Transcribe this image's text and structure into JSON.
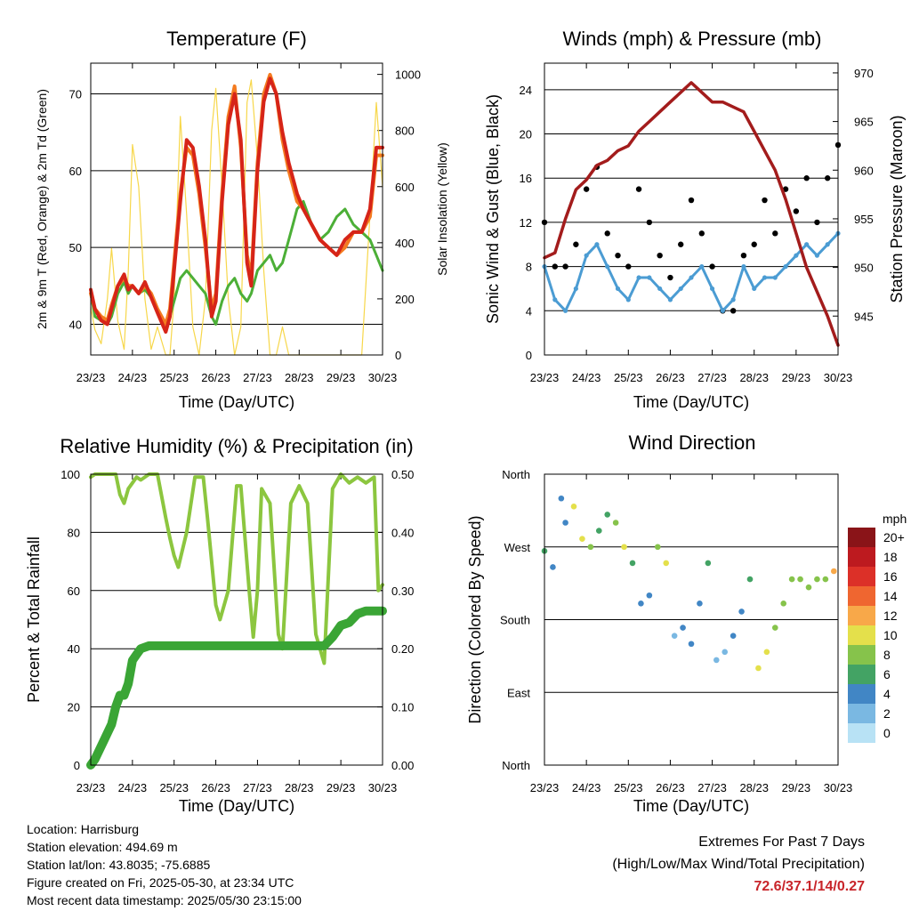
{
  "x_ticks": [
    "23/23",
    "24/23",
    "25/23",
    "26/23",
    "27/23",
    "28/23",
    "29/23",
    "30/23"
  ],
  "xlabel": "Time (Day/UTC)",
  "info": {
    "location": "Location: Harrisburg",
    "elevation": "Station elevation: 494.69 m",
    "latlon": "Station lat/lon: 43.8035; -75.6885",
    "created": "Figure created on Fri, 2025-05-30, at 23:34 UTC",
    "recent": "Most recent data timestamp: 2025/05/30 23:15:00"
  },
  "extremes": {
    "line1": "Extremes For Past 7 Days",
    "line2": "(High/Low/Max Wind/Total Precipitation)",
    "values": "72.6/37.1/14/0.27"
  },
  "chart_data": [
    {
      "type": "line",
      "title": "Temperature (F)",
      "xlabel": "Time (Day/UTC)",
      "ylabel": "2m & 9m T (Red, Orange) & 2m Td (Green)",
      "ylabel_right": "Solar Insolation (Yellow)",
      "ylim": [
        36,
        74
      ],
      "yticks": [
        40,
        50,
        60,
        70
      ],
      "ylim_right": [
        0,
        1040
      ],
      "yticks_right": [
        0,
        200,
        400,
        600,
        800,
        1000
      ],
      "x": [
        0,
        0.1,
        0.25,
        0.4,
        0.5,
        0.65,
        0.8,
        0.9,
        1.0,
        1.15,
        1.3,
        1.45,
        1.6,
        1.8,
        1.9,
        2.0,
        2.15,
        2.3,
        2.45,
        2.6,
        2.75,
        2.9,
        3.0,
        3.15,
        3.3,
        3.45,
        3.6,
        3.75,
        3.85,
        4.0,
        4.15,
        4.3,
        4.45,
        4.6,
        4.75,
        4.85,
        4.95,
        5.1,
        5.3,
        5.5,
        5.7,
        5.9,
        6.1,
        6.3,
        6.5,
        6.7,
        6.85,
        7.0
      ],
      "series": [
        {
          "color": "#d62418",
          "values": [
            44.5,
            42,
            40.5,
            40,
            42,
            45,
            46.5,
            44.5,
            45,
            44,
            45.5,
            43.5,
            41.5,
            39,
            41,
            47,
            56,
            64,
            63,
            58,
            51,
            41,
            43,
            56,
            66,
            70,
            64,
            48,
            45,
            60,
            69,
            72,
            70,
            65,
            61,
            59,
            57,
            55,
            53,
            51,
            50,
            49,
            51,
            52,
            52,
            55,
            63,
            63
          ]
        },
        {
          "color": "#f47b20",
          "values": [
            44,
            42,
            41,
            40.5,
            42.5,
            45,
            46,
            45,
            45,
            44,
            45,
            44,
            42,
            40,
            42,
            48,
            57,
            63,
            62,
            57,
            50,
            42,
            44,
            57,
            67,
            71,
            63,
            49,
            46,
            61,
            70,
            72.5,
            70,
            64,
            60,
            58,
            56,
            55,
            53,
            51,
            50,
            49,
            50,
            52,
            52,
            54,
            62,
            62
          ]
        },
        {
          "color": "#4caf37",
          "values": [
            44,
            41,
            40.5,
            40,
            41,
            44,
            45.5,
            44,
            45,
            44,
            44.5,
            43.5,
            42,
            40,
            41,
            43,
            46,
            47,
            46,
            45,
            44,
            41,
            40,
            43,
            45,
            46,
            44,
            43,
            44,
            47,
            48,
            49,
            47,
            48,
            51,
            53,
            55,
            56,
            53,
            51,
            52,
            54,
            55,
            53,
            52,
            51,
            49,
            47
          ]
        },
        {
          "color": "#f7d74a",
          "values": [
            170,
            90,
            40,
            200,
            380,
            120,
            20,
            300,
            750,
            600,
            200,
            20,
            100,
            0,
            0,
            200,
            850,
            500,
            100,
            0,
            200,
            800,
            950,
            600,
            200,
            0,
            100,
            900,
            980,
            700,
            300,
            0,
            0,
            100,
            0,
            0,
            0,
            0,
            0,
            0,
            0,
            0,
            0,
            0,
            0,
            500,
            900,
            600
          ]
        }
      ]
    },
    {
      "type": "scatter",
      "title": "Winds (mph) & Pressure (mb)",
      "xlabel": "Time (Day/UTC)",
      "ylabel": "Sonic Wind & Gust (Blue, Black)",
      "ylabel_right": "Station Pressure (Maroon)",
      "ylim": [
        0,
        26.4
      ],
      "yticks": [
        0,
        4,
        8,
        12,
        16,
        20,
        24
      ],
      "ylim_right": [
        941,
        971
      ],
      "yticks_right": [
        945,
        950,
        955,
        960,
        965,
        970
      ],
      "x": [
        0,
        0.25,
        0.5,
        0.75,
        1.0,
        1.25,
        1.5,
        1.75,
        2.0,
        2.25,
        2.5,
        2.75,
        3.0,
        3.25,
        3.5,
        3.75,
        4.0,
        4.25,
        4.5,
        4.75,
        5.0,
        5.25,
        5.5,
        5.75,
        6.0,
        6.25,
        6.5,
        6.75,
        7.0
      ],
      "series": [
        {
          "color": "#4b9cd3",
          "values": [
            8,
            5,
            4,
            6,
            9,
            10,
            8,
            6,
            5,
            7,
            7,
            6,
            5,
            6,
            7,
            8,
            6,
            4,
            5,
            8,
            6,
            7,
            7,
            8,
            9,
            10,
            9,
            10,
            11
          ]
        },
        {
          "color": "#000000",
          "values": [
            12,
            8,
            8,
            10,
            15,
            17,
            11,
            9,
            8,
            15,
            12,
            9,
            7,
            10,
            14,
            11,
            8,
            4,
            4,
            9,
            10,
            14,
            11,
            15,
            13,
            16,
            12,
            16,
            19
          ]
        },
        {
          "color": "#a31c1c",
          "axis": "right",
          "values": [
            951,
            951.5,
            955,
            958,
            959,
            960.5,
            961,
            962,
            962.5,
            964,
            965,
            966,
            967,
            968,
            969,
            968,
            967,
            967,
            966.5,
            966,
            964,
            962,
            960,
            957,
            953.5,
            950,
            947.5,
            945,
            942
          ]
        }
      ]
    },
    {
      "type": "line",
      "title": "Relative Humidity (%) & Precipitation (in)",
      "xlabel": "Time (Day/UTC)",
      "ylabel": "Percent & Total Rainfall",
      "ylim": [
        0,
        100
      ],
      "yticks": [
        0,
        20,
        40,
        60,
        80,
        100
      ],
      "ylim_right": [
        0,
        0.5
      ],
      "yticks_right": [
        "0.00",
        "0.10",
        "0.20",
        "0.30",
        "0.40",
        "0.50"
      ],
      "x": [
        0,
        0.1,
        0.3,
        0.5,
        0.6,
        0.7,
        0.8,
        0.9,
        1.0,
        1.1,
        1.2,
        1.4,
        1.6,
        1.8,
        1.9,
        2.0,
        2.1,
        2.3,
        2.5,
        2.7,
        2.8,
        3.0,
        3.1,
        3.3,
        3.5,
        3.6,
        3.8,
        3.9,
        4.0,
        4.1,
        4.3,
        4.5,
        4.6,
        4.8,
        5.0,
        5.2,
        5.4,
        5.6,
        5.8,
        6.0,
        6.2,
        6.4,
        6.6,
        6.8,
        6.9,
        7.0
      ],
      "series": [
        {
          "color": "#8cc63f",
          "values": [
            99,
            100,
            100,
            100,
            100,
            93,
            90,
            95,
            97,
            99,
            98,
            100,
            100,
            85,
            78,
            72,
            68,
            80,
            99,
            99,
            85,
            55,
            50,
            60,
            96,
            96,
            60,
            44,
            60,
            95,
            90,
            45,
            40,
            90,
            96,
            90,
            45,
            35,
            95,
            100,
            97,
            99,
            97,
            99,
            60,
            62
          ]
        },
        {
          "color": "#3aa535",
          "axis": "right",
          "values": [
            0,
            0.01,
            0.04,
            0.07,
            0.1,
            0.12,
            0.12,
            0.14,
            0.18,
            0.19,
            0.2,
            0.205,
            0.205,
            0.205,
            0.205,
            0.205,
            0.205,
            0.205,
            0.205,
            0.205,
            0.205,
            0.205,
            0.205,
            0.205,
            0.205,
            0.205,
            0.205,
            0.205,
            0.205,
            0.205,
            0.205,
            0.205,
            0.205,
            0.205,
            0.205,
            0.205,
            0.205,
            0.205,
            0.22,
            0.24,
            0.245,
            0.26,
            0.265,
            0.265,
            0.265,
            0.265
          ]
        }
      ]
    },
    {
      "type": "scatter",
      "title": "Wind Direction",
      "xlabel": "Time (Day/UTC)",
      "ylabel": "Direction (Colored By Speed)",
      "ylim": [
        0,
        360
      ],
      "yticks": [
        "North",
        "East",
        "South",
        "West",
        "North"
      ],
      "colorbar": {
        "title": "mph",
        "labels": [
          "0",
          "2",
          "4",
          "6",
          "8",
          "10",
          "12",
          "14",
          "16",
          "18",
          "20+"
        ],
        "colors": [
          "#b8e2f5",
          "#7ab8e2",
          "#4186c5",
          "#43a364",
          "#86c34b",
          "#e4e04b",
          "#f8a849",
          "#ef6630",
          "#dc3028",
          "#bd1a1f",
          "#8a1418"
        ]
      },
      "x": [
        0,
        0.2,
        0.4,
        0.5,
        0.7,
        0.9,
        1.1,
        1.3,
        1.5,
        1.7,
        1.9,
        2.1,
        2.3,
        2.5,
        2.7,
        2.9,
        3.1,
        3.3,
        3.5,
        3.7,
        3.9,
        4.1,
        4.3,
        4.5,
        4.7,
        4.9,
        5.1,
        5.3,
        5.5,
        5.7,
        5.9,
        6.1,
        6.3,
        6.5,
        6.7,
        6.9
      ],
      "y": [
        265,
        245,
        330,
        300,
        320,
        280,
        270,
        290,
        310,
        300,
        270,
        250,
        200,
        210,
        270,
        250,
        160,
        170,
        150,
        200,
        250,
        130,
        140,
        160,
        190,
        230,
        120,
        140,
        170,
        200,
        230,
        230,
        220,
        230,
        230,
        240
      ],
      "speed": [
        5,
        4,
        3,
        4,
        9,
        10,
        8,
        6,
        6,
        7,
        9,
        5,
        3,
        4,
        7,
        9,
        2,
        3,
        3,
        4,
        6,
        2,
        2,
        3,
        4,
        5,
        9,
        10,
        8,
        7,
        8,
        7,
        7,
        8,
        8,
        11
      ]
    }
  ]
}
